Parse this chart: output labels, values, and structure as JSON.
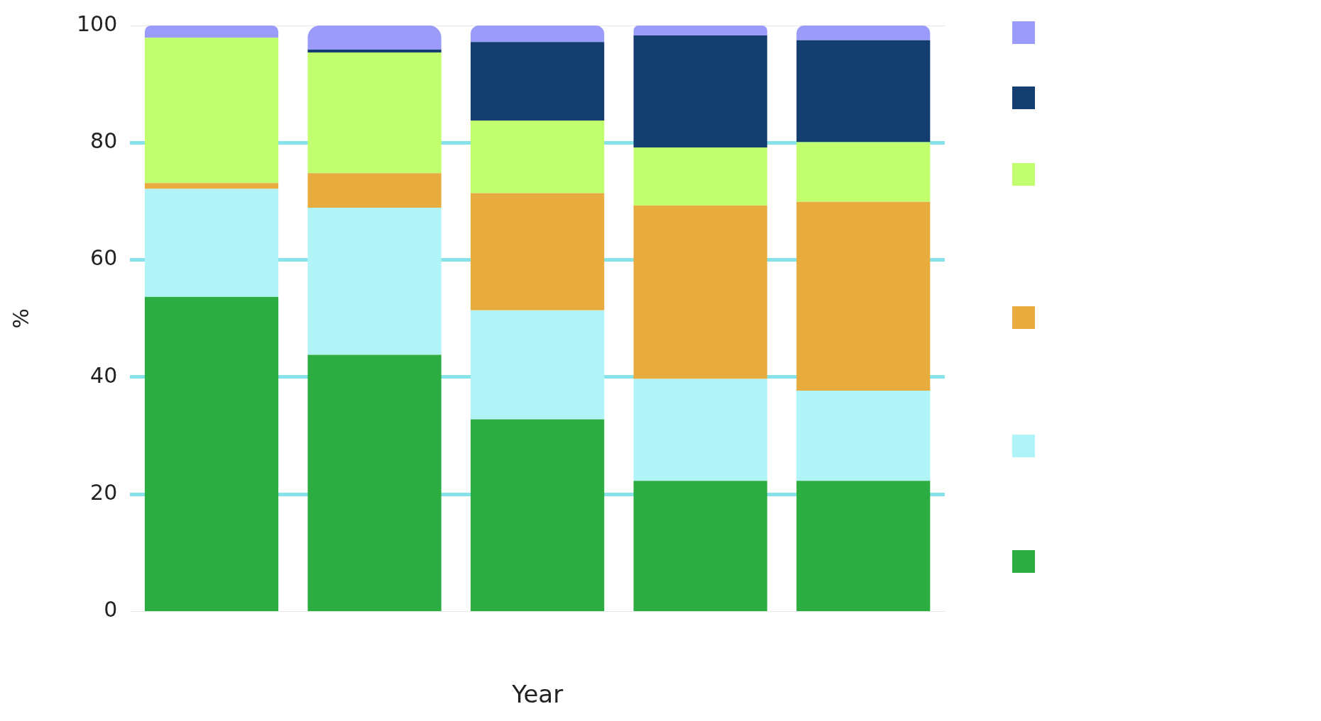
{
  "chart_data": {
    "type": "bar",
    "stacked": true,
    "xlabel": "Year",
    "ylabel": "%",
    "categories": [
      null,
      null,
      null,
      null,
      null
    ],
    "ylim": [
      0,
      100
    ],
    "yticks": [
      0,
      20,
      40,
      60,
      80,
      100
    ],
    "grid": "y",
    "series": [
      {
        "color": "#2cad41",
        "values": [
          53.7,
          43.8,
          32.8,
          22.3,
          22.3
        ]
      },
      {
        "color": "#b0f4f8",
        "values": [
          18.4,
          25.1,
          18.6,
          17.4,
          15.4
        ]
      },
      {
        "color": "#e8ac3e",
        "values": [
          1.0,
          5.9,
          20.0,
          29.6,
          32.2
        ]
      },
      {
        "color": "#c2ff6e",
        "values": [
          24.8,
          20.6,
          12.4,
          9.9,
          10.2
        ]
      },
      {
        "color": "#143e70",
        "values": [
          0,
          0.5,
          13.4,
          19.1,
          17.4
        ]
      },
      {
        "color": "#9b9cfa",
        "values": [
          2.1,
          4.1,
          2.8,
          1.7,
          2.5
        ]
      }
    ]
  }
}
